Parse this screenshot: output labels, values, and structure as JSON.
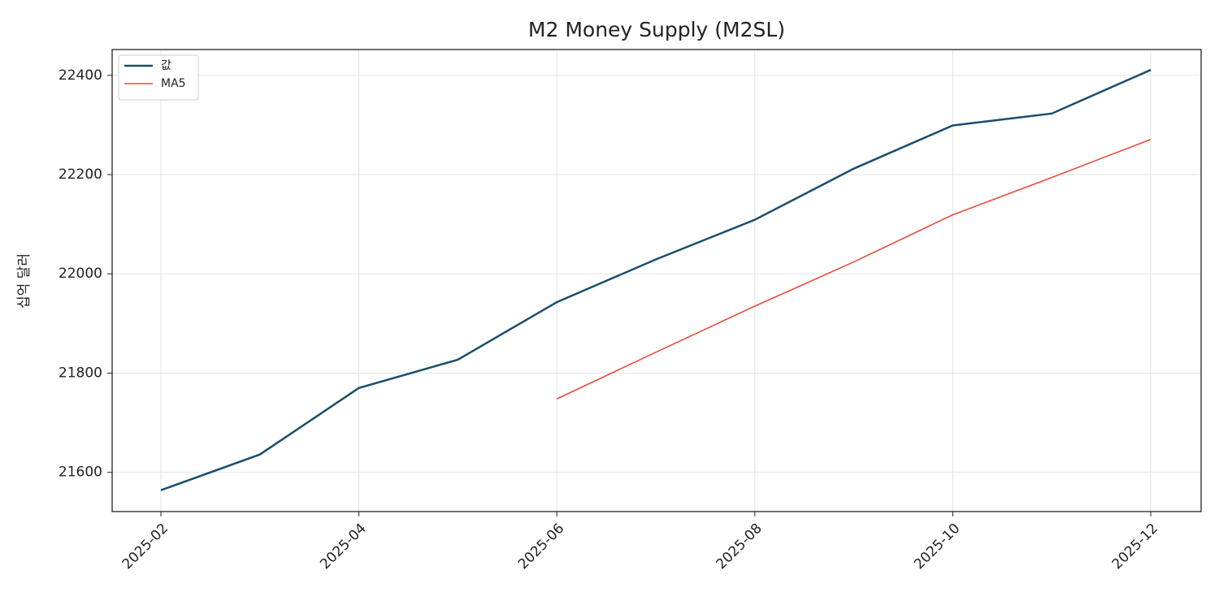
{
  "chart_data": {
    "type": "line",
    "title": "M2 Money Supply (M2SL)",
    "y_label": "십억 달러",
    "x": [
      "2025-02",
      "2025-03",
      "2025-04",
      "2025-05",
      "2025-06",
      "2025-07",
      "2025-08",
      "2025-09",
      "2025-10",
      "2025-11",
      "2025-12"
    ],
    "xticks": [
      "2025-02",
      "2025-04",
      "2025-06",
      "2025-08",
      "2025-10",
      "2025-12"
    ],
    "series": [
      {
        "name": "값",
        "color": "#1a4e6e",
        "values": [
          21564,
          21636,
          21770,
          21827,
          21943,
          22029,
          22109,
          22212,
          22299,
          22323,
          22411
        ]
      },
      {
        "name": "MA5",
        "color": "#e74c3c",
        "values": [
          null,
          null,
          null,
          null,
          21748,
          21842,
          21935,
          22024,
          22119,
          22194,
          22271
        ]
      }
    ],
    "ylim": [
      21521,
      22452
    ],
    "yticks": [
      21600,
      21800,
      22000,
      22200,
      22400
    ],
    "grid": true,
    "legend": "upper left"
  }
}
